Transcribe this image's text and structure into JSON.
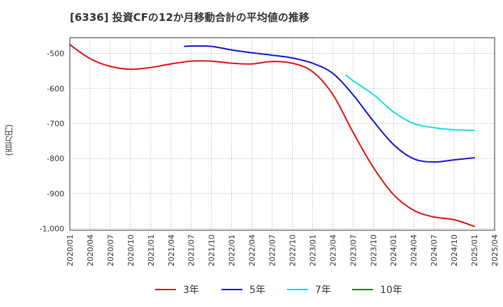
{
  "header": {
    "title": "[6336]  投資CFの12か月移動合計の平均値の推移"
  },
  "chart_data": {
    "type": "line",
    "title": "[6336]  投資CFの12か月移動合計の平均値の推移",
    "xlabel": "",
    "ylabel": "(百万円)",
    "ylim": [
      -1005,
      -455
    ],
    "grid": true,
    "legend_position": "bottom",
    "x_ticks": [
      "2020/01",
      "2020/04",
      "2020/07",
      "2020/10",
      "2021/01",
      "2021/04",
      "2021/07",
      "2021/10",
      "2022/01",
      "2022/04",
      "2022/07",
      "2022/10",
      "2023/01",
      "2023/04",
      "2023/07",
      "2023/10",
      "2024/01",
      "2024/04",
      "2024/07",
      "2024/10",
      "2025/01",
      "2025/04"
    ],
    "y_ticks": [
      -500,
      -600,
      -700,
      -800,
      -900,
      -1000
    ],
    "y_tick_labels": [
      "-500",
      "-600",
      "-700",
      "-800",
      "-900",
      "-1,000"
    ],
    "series": [
      {
        "name": "3年",
        "color": "#dd1111",
        "x": [
          "2020/01",
          "2020/04",
          "2020/07",
          "2020/10",
          "2021/01",
          "2021/04",
          "2021/07",
          "2021/10",
          "2022/01",
          "2022/04",
          "2022/07",
          "2022/10",
          "2023/01",
          "2023/04",
          "2023/07",
          "2023/10",
          "2024/01",
          "2024/04",
          "2024/07",
          "2024/10",
          "2025/01"
        ],
        "values": [
          -475,
          -515,
          -537,
          -545,
          -540,
          -530,
          -522,
          -522,
          -528,
          -530,
          -523,
          -528,
          -552,
          -617,
          -725,
          -825,
          -903,
          -948,
          -967,
          -975,
          -994
        ]
      },
      {
        "name": "5年",
        "color": "#1111cc",
        "x": [
          "2021/06",
          "2021/07",
          "2021/10",
          "2022/01",
          "2022/04",
          "2022/07",
          "2022/10",
          "2023/01",
          "2023/04",
          "2023/07",
          "2023/10",
          "2024/01",
          "2024/04",
          "2024/07",
          "2024/10",
          "2025/01"
        ],
        "values": [
          -480,
          -479,
          -480,
          -490,
          -498,
          -505,
          -513,
          -528,
          -557,
          -618,
          -693,
          -760,
          -801,
          -810,
          -804,
          -798
        ]
      },
      {
        "name": "7年",
        "color": "#11dddd",
        "x": [
          "2023/06",
          "2023/07",
          "2023/10",
          "2024/01",
          "2024/04",
          "2024/07",
          "2024/10",
          "2025/01"
        ],
        "values": [
          -562,
          -578,
          -617,
          -667,
          -700,
          -712,
          -718,
          -720
        ]
      },
      {
        "name": "10年",
        "color": "#118811",
        "x": [],
        "values": []
      }
    ]
  }
}
